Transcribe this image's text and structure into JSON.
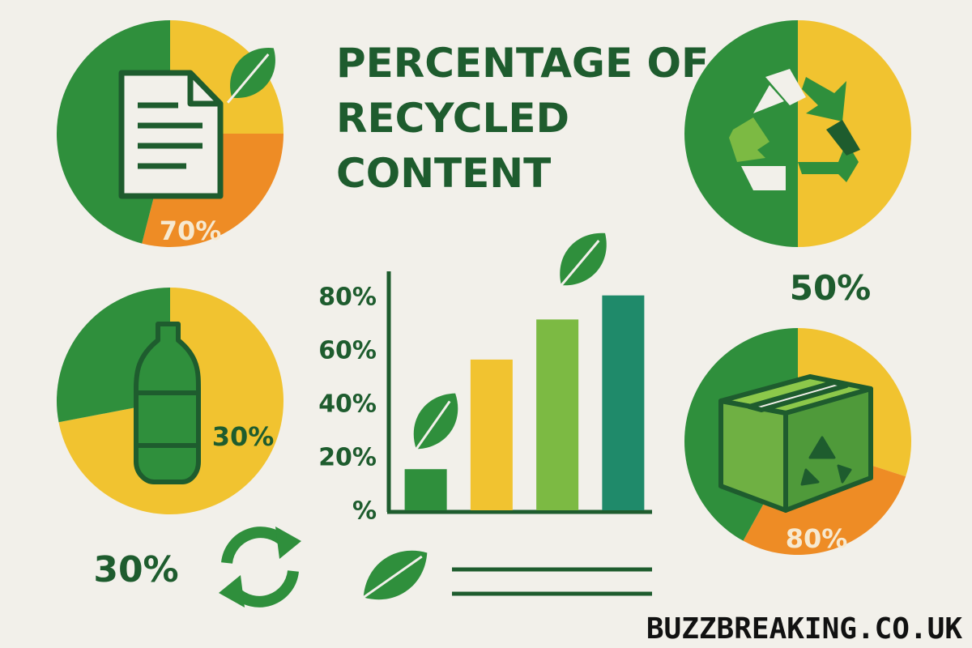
{
  "title": [
    "PERCENTAGE OF",
    "RECYCLED",
    "CONTENT"
  ],
  "chart_data": [
    {
      "type": "pie",
      "values": [
        25,
        29,
        46
      ],
      "colors": [
        "#f1c330",
        "#ee8c25",
        "#2f8f3c"
      ],
      "annotation": "70%"
    },
    {
      "type": "pie",
      "values": [
        50,
        50
      ],
      "colors": [
        "#f1c330",
        "#2f8f3c"
      ],
      "annotation": "50%"
    },
    {
      "type": "pie",
      "values": [
        72,
        28
      ],
      "colors": [
        "#f1c330",
        "#2f8f3c"
      ],
      "annotations": [
        "30%",
        "30%"
      ]
    },
    {
      "type": "pie",
      "values": [
        30,
        28,
        42
      ],
      "colors": [
        "#f1c330",
        "#ee8c25",
        "#2f8f3c"
      ],
      "annotation": "80%"
    },
    {
      "type": "bar",
      "categories": [
        null,
        null,
        null,
        null
      ],
      "values": [
        16,
        57,
        72,
        81
      ],
      "colors": [
        "#2f8f3c",
        "#f1c330",
        "#7cba43",
        "#1f8a6a"
      ],
      "ylim": [
        0,
        90
      ],
      "yticks": [
        {
          "value": 0,
          "label": "%"
        },
        {
          "value": 20,
          "label": "20%"
        },
        {
          "value": 40,
          "label": "40%"
        },
        {
          "value": 60,
          "label": "60%"
        },
        {
          "value": 80,
          "label": "80%"
        }
      ]
    }
  ],
  "watermark": "BUZZBREAKING.CO.UK"
}
